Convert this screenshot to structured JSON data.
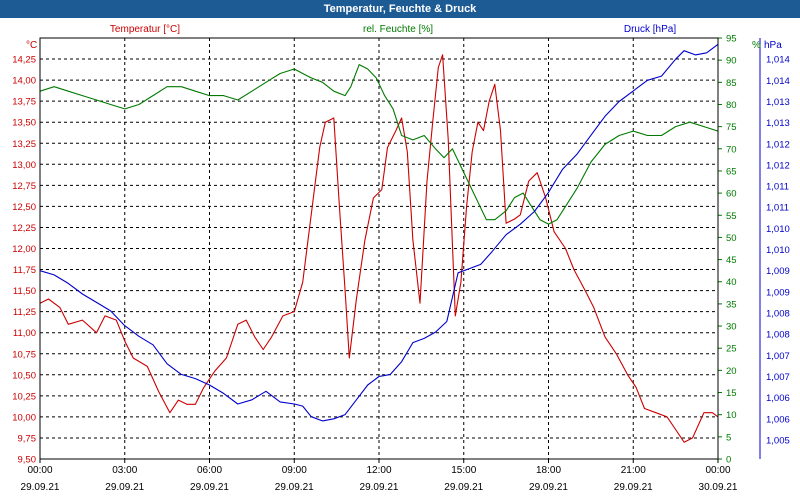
{
  "window": {
    "title": "Temperatur, Feuchte & Druck"
  },
  "chart_data": {
    "type": "line",
    "title": "Temperatur, Feuchte & Druck",
    "grid": true,
    "x_ticks": [
      {
        "time": "00:00",
        "date": "29.09.21"
      },
      {
        "time": "03:00",
        "date": "29.09.21"
      },
      {
        "time": "06:00",
        "date": "29.09.21"
      },
      {
        "time": "09:00",
        "date": "29.09.21"
      },
      {
        "time": "12:00",
        "date": "29.09.21"
      },
      {
        "time": "15:00",
        "date": "29.09.21"
      },
      {
        "time": "18:00",
        "date": "29.09.21"
      },
      {
        "time": "21:00",
        "date": "29.09.21"
      },
      {
        "time": "00:00",
        "date": "30.09.21"
      }
    ],
    "x_range_hours": [
      0,
      24
    ],
    "axes": {
      "temperature": {
        "label": "Temperatur [°C]",
        "unit": "°C",
        "color": "#cc0000",
        "range": [
          9.5,
          14.5
        ],
        "ticks": [
          "9,50",
          "9,75",
          "10,00",
          "10,25",
          "10,50",
          "10,75",
          "11,00",
          "11,25",
          "11,50",
          "11,75",
          "12,00",
          "12,25",
          "12,50",
          "12,75",
          "13,00",
          "13,25",
          "13,50",
          "13,75",
          "14,00",
          "14,25"
        ]
      },
      "humidity": {
        "label": "rel. Feuchte [%]",
        "unit": "%",
        "color": "#007a00",
        "range": [
          0,
          95
        ],
        "ticks": [
          "0",
          "5",
          "10",
          "15",
          "20",
          "25",
          "30",
          "35",
          "40",
          "45",
          "50",
          "55",
          "60",
          "65",
          "70",
          "75",
          "80",
          "85",
          "90",
          "95"
        ]
      },
      "pressure": {
        "label": "Druck [hPa]",
        "unit": "hPa",
        "color": "#0000cc",
        "range": [
          1004.55,
          1014.5
        ],
        "ticks": [
          {
            "label": "1,005",
            "value": 1005.0
          },
          {
            "label": "1,006",
            "value": 1005.5
          },
          {
            "label": "1,006",
            "value": 1006.0
          },
          {
            "label": "1,007",
            "value": 1006.5
          },
          {
            "label": "1,007",
            "value": 1007.0
          },
          {
            "label": "1,008",
            "value": 1007.5
          },
          {
            "label": "1,008",
            "value": 1008.0
          },
          {
            "label": "1,009",
            "value": 1008.5
          },
          {
            "label": "1,009",
            "value": 1009.0
          },
          {
            "label": "1,010",
            "value": 1009.5
          },
          {
            "label": "1,010",
            "value": 1010.0
          },
          {
            "label": "1,011",
            "value": 1010.5
          },
          {
            "label": "1,011",
            "value": 1011.0
          },
          {
            "label": "1,012",
            "value": 1011.5
          },
          {
            "label": "1,012",
            "value": 1012.0
          },
          {
            "label": "1,013",
            "value": 1012.5
          },
          {
            "label": "1,013",
            "value": 1013.0
          },
          {
            "label": "1,014",
            "value": 1013.5
          },
          {
            "label": "1,014",
            "value": 1014.0
          }
        ]
      }
    },
    "series": [
      {
        "name": "Temperatur [°C]",
        "axis": "temperature",
        "color": "#cc0000",
        "points": [
          [
            0,
            11.35
          ],
          [
            0.3,
            11.4
          ],
          [
            0.7,
            11.3
          ],
          [
            1.0,
            11.1
          ],
          [
            1.5,
            11.15
          ],
          [
            2.0,
            11.0
          ],
          [
            2.3,
            11.2
          ],
          [
            2.7,
            11.15
          ],
          [
            3.0,
            10.9
          ],
          [
            3.3,
            10.7
          ],
          [
            3.8,
            10.6
          ],
          [
            4.2,
            10.3
          ],
          [
            4.6,
            10.05
          ],
          [
            4.9,
            10.2
          ],
          [
            5.2,
            10.15
          ],
          [
            5.5,
            10.15
          ],
          [
            5.8,
            10.35
          ],
          [
            6.2,
            10.55
          ],
          [
            6.6,
            10.7
          ],
          [
            7.0,
            11.1
          ],
          [
            7.3,
            11.15
          ],
          [
            7.6,
            10.95
          ],
          [
            7.9,
            10.8
          ],
          [
            8.2,
            10.95
          ],
          [
            8.6,
            11.2
          ],
          [
            9.0,
            11.25
          ],
          [
            9.3,
            11.6
          ],
          [
            9.6,
            12.4
          ],
          [
            9.9,
            13.2
          ],
          [
            10.1,
            13.5
          ],
          [
            10.4,
            13.55
          ],
          [
            10.6,
            12.5
          ],
          [
            10.8,
            11.5
          ],
          [
            10.95,
            10.7
          ],
          [
            11.2,
            11.4
          ],
          [
            11.5,
            12.1
          ],
          [
            11.8,
            12.6
          ],
          [
            12.1,
            12.7
          ],
          [
            12.3,
            13.2
          ],
          [
            12.6,
            13.4
          ],
          [
            12.8,
            13.55
          ],
          [
            13.0,
            13.15
          ],
          [
            13.2,
            12.1
          ],
          [
            13.45,
            11.35
          ],
          [
            13.7,
            12.8
          ],
          [
            13.9,
            13.5
          ],
          [
            14.1,
            14.15
          ],
          [
            14.25,
            14.3
          ],
          [
            14.45,
            13.3
          ],
          [
            14.7,
            11.2
          ],
          [
            14.9,
            11.6
          ],
          [
            15.1,
            12.5
          ],
          [
            15.3,
            13.15
          ],
          [
            15.5,
            13.5
          ],
          [
            15.7,
            13.4
          ],
          [
            15.9,
            13.75
          ],
          [
            16.1,
            13.95
          ],
          [
            16.3,
            13.4
          ],
          [
            16.5,
            12.3
          ],
          [
            16.8,
            12.35
          ],
          [
            17.0,
            12.4
          ],
          [
            17.3,
            12.8
          ],
          [
            17.6,
            12.9
          ],
          [
            17.9,
            12.6
          ],
          [
            18.2,
            12.2
          ],
          [
            18.6,
            12.0
          ],
          [
            18.9,
            11.75
          ],
          [
            19.3,
            11.5
          ],
          [
            19.6,
            11.3
          ],
          [
            20.0,
            10.95
          ],
          [
            20.4,
            10.75
          ],
          [
            20.8,
            10.5
          ],
          [
            21.1,
            10.35
          ],
          [
            21.4,
            10.1
          ],
          [
            21.8,
            10.05
          ],
          [
            22.2,
            10.0
          ],
          [
            22.5,
            9.85
          ],
          [
            22.8,
            9.7
          ],
          [
            23.1,
            9.75
          ],
          [
            23.5,
            10.05
          ],
          [
            23.8,
            10.05
          ],
          [
            24.0,
            10.0
          ]
        ]
      },
      {
        "name": "rel. Feuchte [%]",
        "axis": "humidity",
        "color": "#007a00",
        "points": [
          [
            0,
            83
          ],
          [
            0.5,
            84
          ],
          [
            1.0,
            83
          ],
          [
            1.5,
            82
          ],
          [
            2.0,
            81
          ],
          [
            2.5,
            80
          ],
          [
            3.0,
            79
          ],
          [
            3.5,
            80
          ],
          [
            4.0,
            82
          ],
          [
            4.5,
            84
          ],
          [
            5.0,
            84
          ],
          [
            5.5,
            83
          ],
          [
            6.0,
            82
          ],
          [
            6.5,
            82
          ],
          [
            7.0,
            81
          ],
          [
            7.5,
            83
          ],
          [
            8.0,
            85
          ],
          [
            8.5,
            87
          ],
          [
            9.0,
            88
          ],
          [
            9.3,
            87
          ],
          [
            9.6,
            86
          ],
          [
            10.0,
            85
          ],
          [
            10.4,
            83
          ],
          [
            10.8,
            82
          ],
          [
            11.0,
            84
          ],
          [
            11.3,
            89
          ],
          [
            11.6,
            88
          ],
          [
            11.9,
            86
          ],
          [
            12.2,
            82
          ],
          [
            12.5,
            79
          ],
          [
            12.8,
            73
          ],
          [
            13.2,
            72
          ],
          [
            13.6,
            73
          ],
          [
            14.0,
            70
          ],
          [
            14.3,
            68
          ],
          [
            14.6,
            70
          ],
          [
            14.9,
            66
          ],
          [
            15.2,
            62
          ],
          [
            15.5,
            58
          ],
          [
            15.8,
            54
          ],
          [
            16.1,
            54
          ],
          [
            16.5,
            56
          ],
          [
            16.8,
            59
          ],
          [
            17.1,
            60
          ],
          [
            17.4,
            57
          ],
          [
            17.7,
            54
          ],
          [
            18.0,
            53
          ],
          [
            18.3,
            54
          ],
          [
            18.6,
            57
          ],
          [
            19.0,
            61
          ],
          [
            19.5,
            67
          ],
          [
            20.0,
            71
          ],
          [
            20.5,
            73
          ],
          [
            21.0,
            74
          ],
          [
            21.5,
            73
          ],
          [
            22.0,
            73
          ],
          [
            22.5,
            75
          ],
          [
            23.0,
            76
          ],
          [
            23.5,
            75
          ],
          [
            24.0,
            74
          ]
        ]
      },
      {
        "name": "Druck [hPa]",
        "axis": "pressure",
        "color": "#0000cc",
        "points": [
          [
            0,
            1009.0
          ],
          [
            0.5,
            1008.9
          ],
          [
            1.0,
            1008.7
          ],
          [
            1.5,
            1008.45
          ],
          [
            2.0,
            1008.25
          ],
          [
            2.5,
            1008.05
          ],
          [
            3.0,
            1007.7
          ],
          [
            3.5,
            1007.45
          ],
          [
            4.0,
            1007.25
          ],
          [
            4.5,
            1006.8
          ],
          [
            5.0,
            1006.55
          ],
          [
            5.5,
            1006.45
          ],
          [
            6.0,
            1006.3
          ],
          [
            6.5,
            1006.1
          ],
          [
            7.0,
            1005.85
          ],
          [
            7.5,
            1005.95
          ],
          [
            8.0,
            1006.15
          ],
          [
            8.5,
            1005.9
          ],
          [
            9.0,
            1005.85
          ],
          [
            9.3,
            1005.8
          ],
          [
            9.6,
            1005.55
          ],
          [
            10.0,
            1005.45
          ],
          [
            10.4,
            1005.5
          ],
          [
            10.8,
            1005.6
          ],
          [
            11.2,
            1005.95
          ],
          [
            11.6,
            1006.3
          ],
          [
            12.0,
            1006.5
          ],
          [
            12.4,
            1006.55
          ],
          [
            12.8,
            1006.85
          ],
          [
            13.2,
            1007.3
          ],
          [
            13.6,
            1007.4
          ],
          [
            14.0,
            1007.55
          ],
          [
            14.4,
            1007.8
          ],
          [
            14.8,
            1008.95
          ],
          [
            15.2,
            1009.05
          ],
          [
            15.6,
            1009.15
          ],
          [
            16.0,
            1009.45
          ],
          [
            16.5,
            1009.85
          ],
          [
            17.0,
            1010.1
          ],
          [
            17.5,
            1010.4
          ],
          [
            18.0,
            1010.85
          ],
          [
            18.5,
            1011.4
          ],
          [
            19.0,
            1011.75
          ],
          [
            19.5,
            1012.2
          ],
          [
            20.0,
            1012.65
          ],
          [
            20.5,
            1013.0
          ],
          [
            21.0,
            1013.25
          ],
          [
            21.5,
            1013.5
          ],
          [
            22.0,
            1013.6
          ],
          [
            22.5,
            1014.0
          ],
          [
            22.8,
            1014.2
          ],
          [
            23.2,
            1014.1
          ],
          [
            23.6,
            1014.15
          ],
          [
            24.0,
            1014.35
          ]
        ]
      }
    ]
  }
}
